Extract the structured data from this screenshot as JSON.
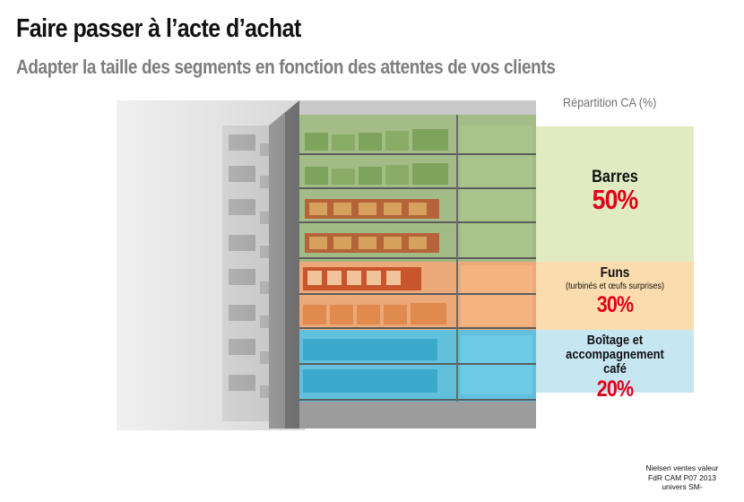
{
  "header": {
    "title": "Faire passer à l’acte d’achat",
    "subtitle": "Adapter la taille des segments en fonction des attentes de vos clients"
  },
  "chart": {
    "label": "Répartition CA (%)",
    "segments": [
      {
        "name": "Barres",
        "detail": "",
        "percent_text": "50%",
        "share": 50,
        "color": "#e1ebc2"
      },
      {
        "name": "Funs",
        "detail": "(turbinés et œufs surprises)",
        "percent_text": "30%",
        "share": 30,
        "color": "#fbdcae"
      },
      {
        "name": "Boîtage et accompagnement café",
        "detail": "",
        "percent_text": "20%",
        "share": 20,
        "color": "#c6e6f2"
      }
    ]
  },
  "colors": {
    "title": "#111111",
    "subtitle": "#7d7d7d",
    "percent": "#e2001a",
    "shelf_green": "#9bb87a",
    "shelf_orange": "#f2a36b",
    "shelf_blue": "#56c1e0"
  },
  "source": {
    "line1": "Nielsen  ventes valeur",
    "line2": "FdR CAM P07 2013",
    "line3": "univers SM-"
  }
}
